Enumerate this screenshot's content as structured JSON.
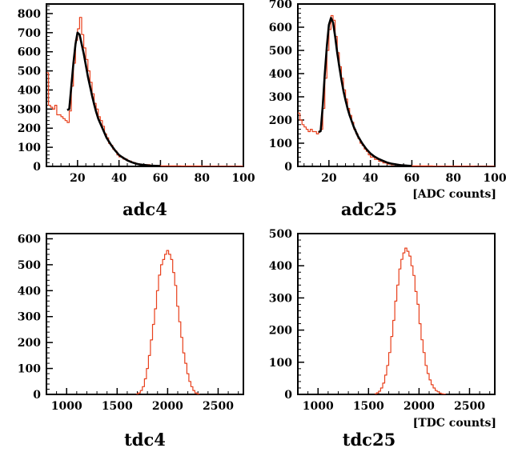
{
  "chart_data": [
    {
      "type": "histogram",
      "title": "adc4",
      "xlabel": "",
      "xlim": [
        5,
        100
      ],
      "ylim": [
        0,
        850
      ],
      "xticks": [
        20,
        40,
        60,
        80,
        100
      ],
      "yticks": [
        0,
        100,
        200,
        300,
        400,
        500,
        600,
        700,
        800
      ],
      "series": [
        {
          "color": "#e8401c",
          "style": "step",
          "x": [
            5,
            6,
            7,
            8,
            9,
            10,
            11,
            12,
            13,
            14,
            15,
            16,
            17,
            18,
            19,
            20,
            21,
            22,
            23,
            24,
            25,
            26,
            27,
            28,
            29,
            30,
            31,
            32,
            33,
            34,
            35,
            36,
            37,
            38,
            39,
            40,
            42,
            44,
            46,
            48,
            50,
            55,
            60,
            70,
            80,
            90,
            100
          ],
          "y": [
            490,
            320,
            310,
            300,
            320,
            270,
            270,
            260,
            250,
            240,
            230,
            290,
            420,
            540,
            660,
            720,
            780,
            690,
            620,
            560,
            500,
            440,
            380,
            330,
            300,
            260,
            240,
            210,
            170,
            150,
            120,
            110,
            90,
            80,
            60,
            50,
            38,
            28,
            20,
            14,
            9,
            5,
            3,
            2,
            1,
            1,
            0
          ]
        },
        {
          "color": "#000000",
          "style": "line",
          "x": [
            15,
            16,
            17,
            18,
            19,
            20,
            21,
            22,
            23,
            24,
            25,
            26,
            27,
            28,
            29,
            30,
            32,
            34,
            36,
            38,
            40,
            42,
            44,
            46,
            48,
            50,
            55,
            60
          ],
          "y": [
            295,
            300,
            420,
            540,
            640,
            700,
            690,
            640,
            590,
            530,
            470,
            420,
            370,
            325,
            285,
            250,
            200,
            150,
            115,
            85,
            60,
            45,
            32,
            22,
            15,
            10,
            4,
            2
          ]
        }
      ]
    },
    {
      "type": "histogram",
      "title": "adc25",
      "xlabel": "[ADC counts]",
      "xlim": [
        5,
        100
      ],
      "ylim": [
        0,
        700
      ],
      "xticks": [
        20,
        40,
        60,
        80,
        100
      ],
      "yticks": [
        0,
        100,
        200,
        300,
        400,
        500,
        600,
        700
      ],
      "series": [
        {
          "color": "#e8401c",
          "style": "step",
          "x": [
            5,
            6,
            7,
            8,
            9,
            10,
            11,
            12,
            13,
            14,
            15,
            16,
            17,
            18,
            19,
            20,
            21,
            22,
            23,
            24,
            25,
            26,
            27,
            28,
            29,
            30,
            31,
            32,
            33,
            34,
            35,
            36,
            37,
            38,
            39,
            40,
            42,
            44,
            46,
            48,
            50,
            55,
            60,
            70,
            80,
            90,
            100
          ],
          "y": [
            230,
            200,
            180,
            170,
            160,
            150,
            160,
            150,
            150,
            140,
            150,
            160,
            250,
            380,
            500,
            590,
            650,
            630,
            560,
            490,
            430,
            380,
            330,
            290,
            250,
            220,
            190,
            160,
            140,
            120,
            100,
            90,
            75,
            65,
            50,
            40,
            30,
            22,
            15,
            10,
            7,
            4,
            2,
            1,
            1,
            0,
            0
          ]
        },
        {
          "color": "#000000",
          "style": "line",
          "x": [
            15,
            16,
            17,
            18,
            19,
            20,
            21,
            22,
            23,
            24,
            25,
            26,
            27,
            28,
            29,
            30,
            32,
            34,
            36,
            38,
            40,
            42,
            44,
            46,
            48,
            50,
            55,
            60
          ],
          "y": [
            148,
            152,
            260,
            400,
            520,
            610,
            640,
            620,
            560,
            490,
            430,
            375,
            325,
            285,
            250,
            220,
            170,
            130,
            100,
            75,
            56,
            42,
            32,
            24,
            17,
            12,
            5,
            2
          ]
        }
      ]
    },
    {
      "type": "histogram",
      "title": "tdc4",
      "xlabel": "",
      "xlim": [
        800,
        2750
      ],
      "ylim": [
        0,
        620
      ],
      "xticks": [
        1000,
        1500,
        2000,
        2500
      ],
      "yticks": [
        0,
        100,
        200,
        300,
        400,
        500,
        600
      ],
      "series": [
        {
          "color": "#e8401c",
          "style": "step",
          "x": [
            1690,
            1710,
            1730,
            1750,
            1770,
            1790,
            1810,
            1830,
            1850,
            1870,
            1890,
            1910,
            1930,
            1950,
            1970,
            1990,
            2010,
            2030,
            2050,
            2070,
            2090,
            2110,
            2130,
            2150,
            2170,
            2190,
            2210,
            2230,
            2250,
            2270,
            2290,
            2310
          ],
          "y": [
            2,
            6,
            15,
            30,
            60,
            100,
            150,
            210,
            270,
            330,
            400,
            460,
            500,
            520,
            540,
            555,
            540,
            520,
            470,
            420,
            340,
            280,
            220,
            160,
            120,
            80,
            50,
            30,
            15,
            6,
            2,
            0
          ]
        }
      ]
    },
    {
      "type": "histogram",
      "title": "tdc25",
      "xlabel": "[TDC counts]",
      "xlim": [
        800,
        2750
      ],
      "ylim": [
        0,
        500
      ],
      "xticks": [
        1000,
        1500,
        2000,
        2500
      ],
      "yticks": [
        0,
        100,
        200,
        300,
        400,
        500
      ],
      "series": [
        {
          "color": "#e8401c",
          "style": "step",
          "x": [
            1560,
            1580,
            1600,
            1620,
            1640,
            1660,
            1680,
            1700,
            1720,
            1740,
            1760,
            1780,
            1800,
            1820,
            1840,
            1860,
            1880,
            1900,
            1920,
            1940,
            1960,
            1980,
            2000,
            2020,
            2040,
            2060,
            2080,
            2100,
            2120,
            2140,
            2160,
            2180,
            2200,
            2220,
            2240,
            2260
          ],
          "y": [
            2,
            5,
            10,
            20,
            35,
            60,
            90,
            130,
            180,
            230,
            290,
            340,
            390,
            420,
            440,
            455,
            445,
            430,
            400,
            370,
            320,
            280,
            220,
            170,
            130,
            90,
            65,
            45,
            30,
            20,
            12,
            8,
            4,
            2,
            1,
            0
          ]
        }
      ]
    }
  ]
}
